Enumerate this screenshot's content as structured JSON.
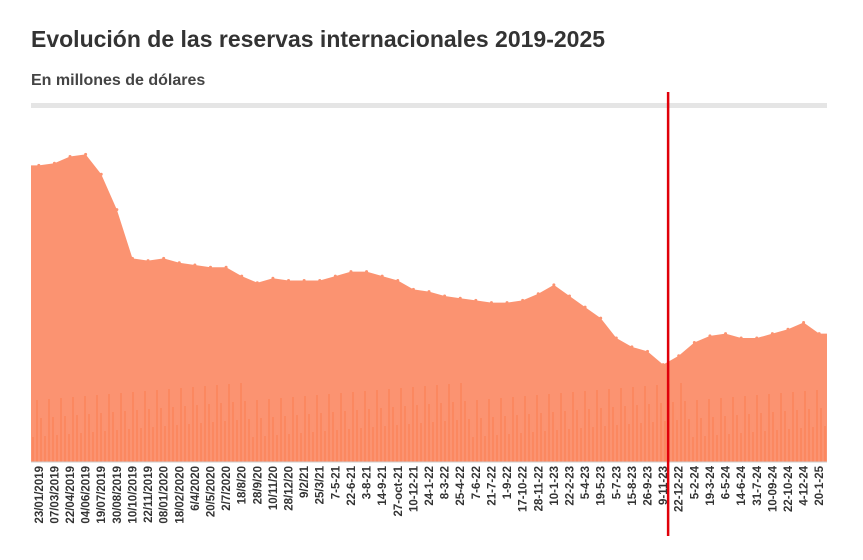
{
  "chart_data": {
    "type": "area",
    "title": "Evolución de las reservas internacionales 2019-2025",
    "subtitle": "En millones de dólares",
    "xlabel": "",
    "ylabel": "",
    "y_axis_labels_shown": false,
    "grid": false,
    "legend": "none",
    "ylim": [
      0,
      75000
    ],
    "x": [
      "23/01/2019",
      "07/03/2019",
      "22/04/2019",
      "04/06/2019",
      "19/07/2019",
      "30/08/2019",
      "10/10/2019",
      "22/11/2019",
      "08/01/2020",
      "18/02/2020",
      "6/4/2020",
      "20/5/2020",
      "2/7/2020",
      "18/8/20",
      "28/9/20",
      "10/11/20",
      "28/12/20",
      "9/2/21",
      "25/3/21",
      "7-5-21",
      "22-6-21",
      "3-8-21",
      "14-9-21",
      "27-oct-21",
      "10-12-21",
      "24-1-22",
      "8-3-22",
      "25-4-22",
      "7-6-22",
      "21-7-22",
      "1-9-22",
      "17-10-22",
      "28-11-22",
      "10-1-23",
      "22-2-23",
      "5-4-23",
      "19-5-23",
      "5-7-23",
      "15-8-23",
      "26-9-23",
      "9-11-23",
      "22-12-22",
      "5-2-24",
      "19-3-24",
      "6-5-24",
      "14-6-24",
      "31-7-24",
      "10-09-24",
      "22-10-24",
      "4-12-24",
      "20-1-25"
    ],
    "series": [
      {
        "values": [
          67000,
          67500,
          69000,
          69500,
          65000,
          57000,
          46000,
          45500,
          46000,
          45000,
          44500,
          44000,
          44000,
          42000,
          40500,
          41500,
          41000,
          41000,
          41000,
          42000,
          43000,
          43000,
          42000,
          41000,
          39000,
          38500,
          37500,
          37000,
          36500,
          36000,
          36000,
          36500,
          38000,
          40000,
          37500,
          35000,
          32500,
          28000,
          26000,
          25000,
          22000,
          24000,
          27000,
          28500,
          29000,
          28000,
          28000,
          29000,
          30000,
          31500,
          29000
        ]
      }
    ],
    "annotations": {
      "vertical_marker_category": "9-11-23",
      "vertical_marker_color": "#e0000a"
    },
    "colors": {
      "area_fill": "#fb9371",
      "area_texture": "#fb6a36",
      "divider": "#e5e5e5",
      "tick_text": "#333333"
    }
  }
}
